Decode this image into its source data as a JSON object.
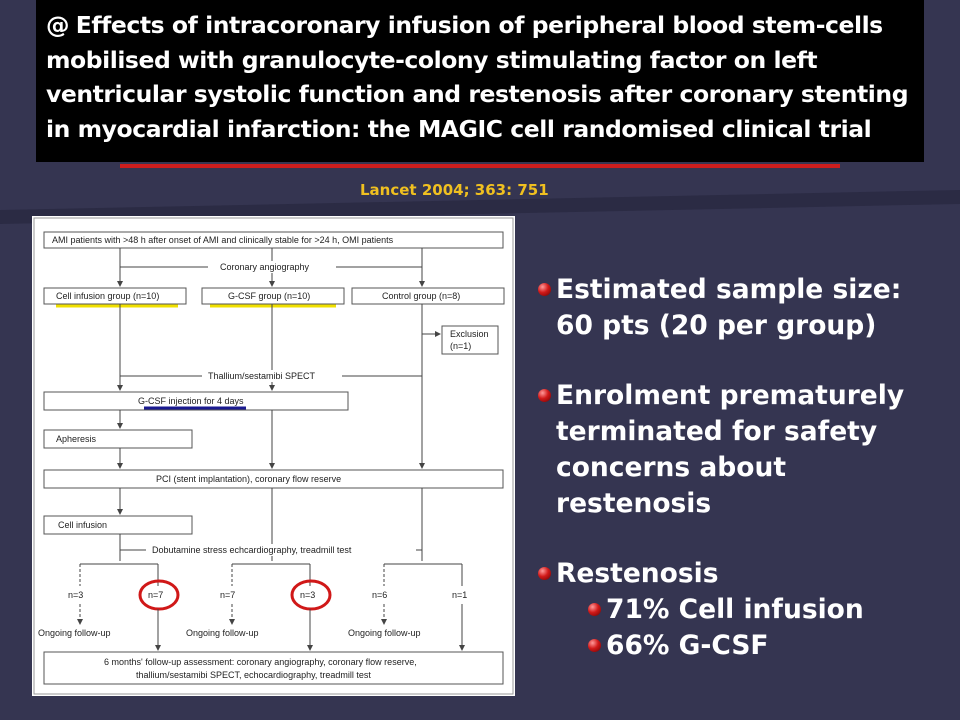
{
  "slide": {
    "title": "Effects of intracoronary infusion of peripheral blood stem-cells mobilised with granulocyte-colony stimulating factor on left ventricular systolic function and restenosis after coronary stenting in myocardial infarction: the MAGIC cell randomised clinical trial",
    "title_lines": [
      "Effects of intracoronary infusion of peripheral blood stem-cells",
      "mobilised with granulocyte-colony stimulating factor on left",
      "ventricular systolic function and restenosis after coronary stenting",
      "in myocardial infarction: the MAGIC cell randomised clinical trial"
    ],
    "logo_glyph": "@",
    "citation": "Lancet 2004; 363: 751",
    "colors": {
      "background": "#353551",
      "title_bg": "#000000",
      "citation": "#f0c020",
      "rule": "#cc1d1d",
      "highlight_circle": "#d01818"
    }
  },
  "flowchart": {
    "top": "AMI patients with >48 h after onset of AMI and clinically stable for >24 h, OMI patients",
    "angiography": "Coronary angiography",
    "groups": [
      "Cell infusion group (n=10)",
      "G-CSF group (n=10)",
      "Control group (n=8)"
    ],
    "exclusion": [
      "Exclusion",
      "(n=1)"
    ],
    "spect": "Thallium/sestamibi SPECT",
    "gcsf": "G-CSF injection for 4 days",
    "apheresis": "Apheresis",
    "pci": "PCI (stent implantation), coronary flow reserve",
    "cell_infusion": "Cell infusion",
    "dobutamine": "Dobutamine stress echcardiography, treadmill test",
    "counts": [
      "n=3",
      "n=7",
      "n=7",
      "n=3",
      "n=6",
      "n=1"
    ],
    "followup": [
      "Ongoing follow-up",
      "Ongoing follow-up",
      "Ongoing follow-up"
    ],
    "final": [
      "6 months' follow-up assessment: coronary angiography, coronary flow reserve,",
      "thallium/sestamibi SPECT, echocardiography, treadmill test"
    ]
  },
  "bullets": {
    "sample": [
      "Estimated sample size:",
      "60 pts (20 per group)"
    ],
    "enrolment": [
      "Enrolment prematurely",
      "terminated for safety",
      "concerns about",
      "restenosis"
    ],
    "restenosis": "Restenosis",
    "restenosis_items": [
      "71% Cell infusion",
      "66% G-CSF"
    ]
  }
}
